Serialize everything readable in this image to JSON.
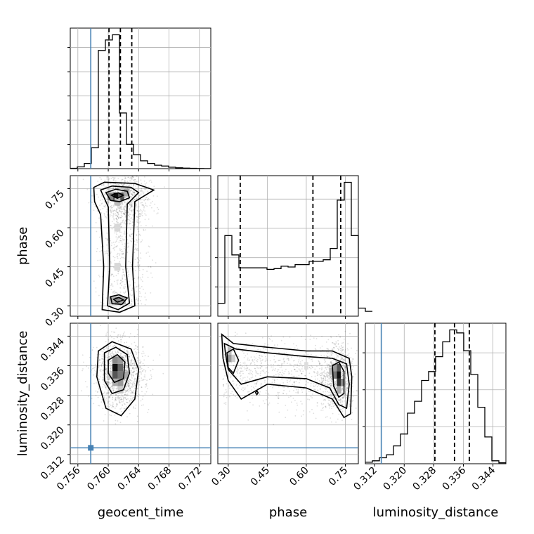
{
  "chart_data": {
    "type": "corner",
    "parameters": [
      "geocent_time",
      "phase",
      "luminosity_distance"
    ],
    "axis_labels": {
      "x": [
        "geocent_time",
        "phase",
        "luminosity_distance"
      ],
      "y": [
        "",
        "phase",
        "luminosity_distance"
      ]
    },
    "ranges": {
      "geocent_time": [
        0.755,
        0.7735
      ],
      "phase": [
        0.26,
        0.8
      ],
      "luminosity_distance": [
        0.3095,
        0.3475
      ]
    },
    "ticks": {
      "geocent_time": [
        0.756,
        0.76,
        0.764,
        0.768,
        0.772
      ],
      "phase": [
        0.3,
        0.45,
        0.6,
        0.75
      ],
      "luminosity_distance": [
        0.312,
        0.32,
        0.328,
        0.336,
        0.344
      ]
    },
    "tick_labels": {
      "geocent_time": [
        "0.756",
        "0.760",
        "0.764",
        "0.768",
        "0.772"
      ],
      "phase": [
        "0.30",
        "0.45",
        "0.60",
        "0.75"
      ],
      "phase_diag": [
        "0.30",
        "0.45",
        "0.60",
        "0.75"
      ],
      "luminosity_distance": [
        "0.312",
        "0.320",
        "0.328",
        "0.336",
        "0.344"
      ]
    },
    "truths": {
      "geocent_time": 0.7577,
      "luminosity_distance": 0.3138
    },
    "quantiles": {
      "geocent_time": [
        0.7601,
        0.7616,
        0.7631
      ],
      "phase": [
        0.3461,
        0.6255,
        0.7322
      ],
      "luminosity_distance": [
        0.3283,
        0.3336,
        0.3376
      ]
    },
    "histograms": {
      "geocent_time": {
        "edges_start": 0.755,
        "bin_width": 0.000925,
        "counts": [
          0.2,
          1,
          3,
          12,
          68,
          74,
          77,
          32,
          14,
          8,
          4.5,
          3,
          2,
          1.5,
          0.8,
          0.5,
          0.3,
          0.2,
          0.1,
          0.05
        ]
      },
      "phase": {
        "edges_start": 0.26,
        "bin_width": 0.027,
        "counts": [
          8,
          50,
          38,
          30,
          30,
          30,
          30,
          29,
          29.5,
          31,
          30.5,
          32,
          32,
          34,
          34,
          35,
          42,
          72,
          83,
          50,
          5,
          3
        ]
      },
      "luminosity_distance": {
        "edges_start": 0.3095,
        "bin_width": 0.0019,
        "counts": [
          0.5,
          1,
          2,
          3,
          6,
          10,
          17,
          21,
          28,
          31,
          36,
          41,
          45,
          44,
          38,
          30,
          19,
          9,
          1,
          0.3
        ]
      }
    },
    "grid": true
  }
}
